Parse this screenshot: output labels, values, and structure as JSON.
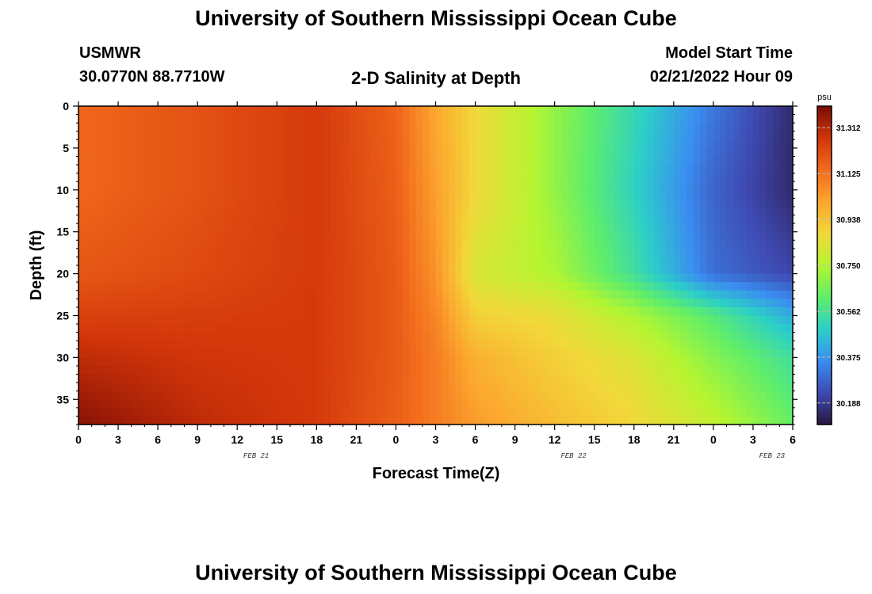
{
  "header": {
    "title": "University of Southern Mississippi Ocean Cube",
    "station": "USMWR",
    "coordinates": "30.0770N  88.7710W",
    "plot_title": "2-D Salinity at Depth",
    "model_start_label": "Model Start Time",
    "model_start_value": "02/21/2022 Hour 09"
  },
  "footer": {
    "title": "University of Southern Mississippi Ocean Cube"
  },
  "chart_data": {
    "type": "heatmap",
    "xlabel": "Forecast Time(Z)",
    "ylabel": "Depth (ft)",
    "x_tick_labels": [
      "0",
      "3",
      "6",
      "9",
      "12",
      "15",
      "18",
      "21",
      "0",
      "3",
      "6",
      "9",
      "12",
      "15",
      "18",
      "21",
      "0",
      "3",
      "6"
    ],
    "date_labels": [
      {
        "label": "FEB 21",
        "hour_index": 15
      },
      {
        "label": "FEB 22",
        "hour_index": 63
      },
      {
        "label": "FEB 23",
        "hour_index": 93
      }
    ],
    "xlim_hours": [
      0,
      54
    ],
    "y_ticks": [
      0,
      5,
      10,
      15,
      20,
      25,
      30,
      35
    ],
    "ylim": [
      0,
      38
    ],
    "y_inverted": true,
    "colorbar": {
      "unit": "psu",
      "min": 30.1,
      "max": 31.4,
      "tick_values": [
        31.312,
        31.125,
        30.938,
        30.75,
        30.562,
        30.375,
        30.188
      ],
      "tick_labels": [
        "31.312",
        "31.125",
        "30.938",
        "30.750",
        "30.562",
        "30.375",
        "30.188"
      ],
      "colormap_stops": [
        "#2a1640",
        "#3e4ab2",
        "#3a8ef0",
        "#2ccfc8",
        "#5fee6a",
        "#b5f530",
        "#f2d83a",
        "#fca52e",
        "#f26b1c",
        "#d2350a",
        "#7a0c04"
      ]
    },
    "salinity_profiles": {
      "depths_ft": [
        0,
        10,
        20,
        25,
        30,
        38
      ],
      "times_h": [
        0,
        9,
        18,
        24,
        27,
        30,
        36,
        42,
        48,
        54
      ],
      "values": [
        [
          31.15,
          31.2,
          31.26,
          31.16,
          31.0,
          30.88,
          30.7,
          30.52,
          30.32,
          30.15
        ],
        [
          31.15,
          31.2,
          31.26,
          31.17,
          31.02,
          30.88,
          30.7,
          30.5,
          30.28,
          30.15
        ],
        [
          31.19,
          31.22,
          31.26,
          31.18,
          31.05,
          30.82,
          30.74,
          30.55,
          30.3,
          30.22
        ],
        [
          31.24,
          31.25,
          31.26,
          31.18,
          31.08,
          30.9,
          30.86,
          30.74,
          30.6,
          30.42
        ],
        [
          31.3,
          31.27,
          31.26,
          31.18,
          31.1,
          30.98,
          30.9,
          30.83,
          30.68,
          30.55
        ],
        [
          31.38,
          31.3,
          31.26,
          31.17,
          31.1,
          31.03,
          30.95,
          30.88,
          30.78,
          30.63
        ]
      ]
    }
  }
}
